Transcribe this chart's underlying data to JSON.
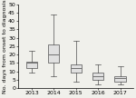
{
  "title": "",
  "ylabel": "No. days from onset to diagnosis",
  "years": [
    "2013",
    "2014",
    "2015",
    "2016",
    "2017"
  ],
  "box_stats": [
    {
      "med": 15,
      "q1": 12,
      "q3": 16,
      "whislo": 9,
      "whishi": 22,
      "fliers": []
    },
    {
      "med": 20,
      "q1": 15,
      "q3": 26,
      "whislo": 7,
      "whishi": 44,
      "fliers": []
    },
    {
      "med": 12,
      "q1": 9,
      "q3": 14,
      "whislo": 4,
      "whishi": 28,
      "fliers": []
    },
    {
      "med": 7,
      "q1": 5,
      "q3": 9,
      "whislo": 2,
      "whishi": 14,
      "fliers": []
    },
    {
      "med": 6,
      "q1": 4,
      "q3": 7,
      "whislo": 2,
      "whishi": 13,
      "fliers": []
    }
  ],
  "ylim": [
    0,
    50
  ],
  "yticks": [
    0,
    5,
    10,
    15,
    20,
    25,
    30,
    35,
    40,
    45,
    50
  ],
  "box_color": "#e0e0e0",
  "median_color": "#707070",
  "whisker_color": "#505050",
  "line_color": "#505050",
  "tick_fontsize": 4.5,
  "ylabel_fontsize": 4.5,
  "background_color": "#f0f0eb"
}
